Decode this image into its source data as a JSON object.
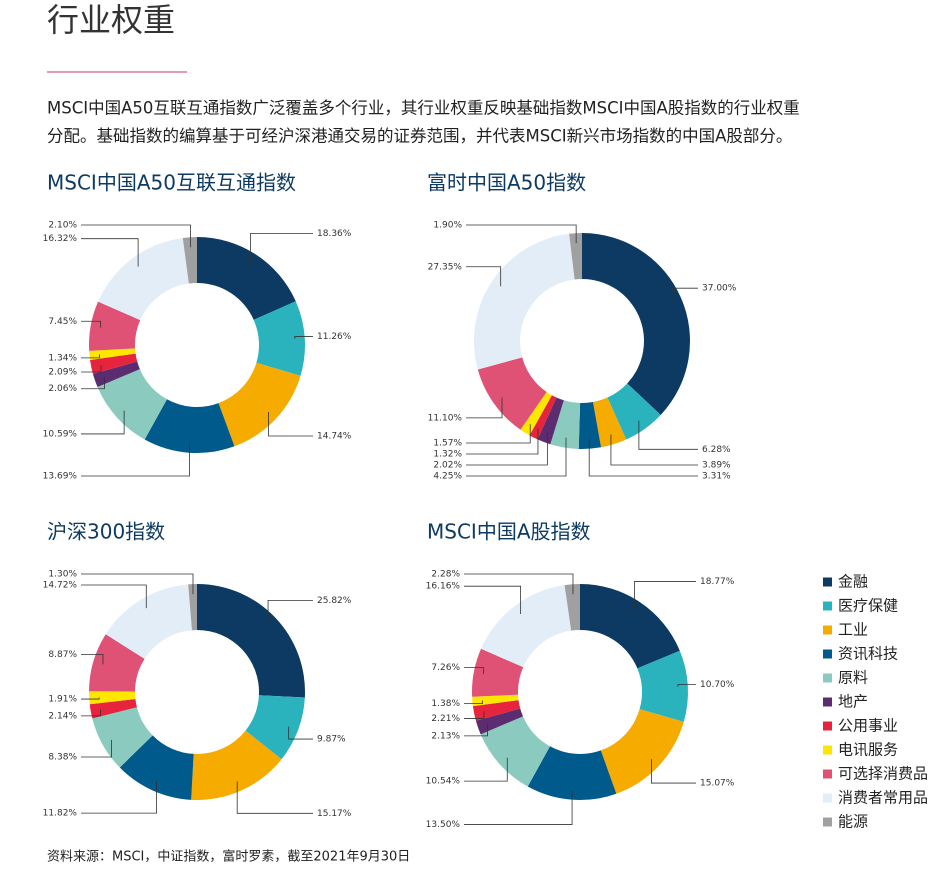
{
  "title": "行业权重",
  "intro": [
    "MSCI中国A50互联互通指数广泛覆盖多个行业，其行业权重反映基础指数MSCI中国A股指数的行业权重",
    "分配。基础指数的编算基于可经沪深港通交易的证券范围，并代表MSCI新兴市场指数的中国A股部分。"
  ],
  "source": "资料来源：MSCI，中证指数，富时罗素，截至2021年9月30日",
  "legend": {
    "labels": [
      "金融",
      "医疗保健",
      "工业",
      "资讯科技",
      "原料",
      "地产",
      "公用事业",
      "电讯服务",
      "可选择消费品",
      "消费者常用品",
      "能源"
    ],
    "colors": [
      "#0d3a63",
      "#2ab3bd",
      "#f5ab00",
      "#005b8c",
      "#8bcbbf",
      "#5b2c6f",
      "#e6243e",
      "#ffe600",
      "#e05275",
      "#e3edf7",
      "#a0a0a0"
    ]
  },
  "chart_data": [
    {
      "type": "pie",
      "title": "MSCI中国A50互联互通指数",
      "values": [
        18.36,
        11.26,
        14.74,
        13.69,
        10.59,
        2.06,
        2.09,
        1.34,
        7.45,
        16.32,
        2.1
      ],
      "value_labels": [
        "18.36%",
        "11.26%",
        "14.74%",
        "13.69%",
        "10.59%",
        "2.06%",
        "2.09%",
        "1.34%",
        "7.45%",
        "16.32%",
        "2.10%"
      ]
    },
    {
      "type": "pie",
      "title": "富时中国A50指数",
      "values": [
        37.0,
        6.28,
        3.89,
        3.31,
        4.25,
        2.02,
        1.32,
        1.57,
        11.1,
        27.35,
        1.9
      ],
      "value_labels": [
        "37.00%",
        "6.28%",
        "3.89%",
        "3.31%",
        "4.25%",
        "2.02%",
        "1.32%",
        "1.57%",
        "11.10%",
        "27.35%",
        "1.90%"
      ]
    },
    {
      "type": "pie",
      "title": "沪深300指数",
      "values": [
        25.82,
        9.87,
        15.17,
        11.82,
        8.38,
        null,
        2.14,
        1.91,
        8.87,
        14.72,
        1.3
      ],
      "value_labels": [
        "25.82%",
        "9.87%",
        "15.17%",
        "11.82%",
        "8.38%",
        null,
        "2.14%",
        "1.91%",
        "8.87%",
        "14.72%",
        "1.30%"
      ]
    },
    {
      "type": "pie",
      "title": "MSCI中国A股指数",
      "values": [
        18.77,
        10.7,
        15.07,
        13.5,
        10.54,
        2.13,
        2.21,
        1.38,
        7.26,
        16.16,
        2.28
      ],
      "value_labels": [
        "18.77%",
        "10.70%",
        "15.07%",
        "13.50%",
        "10.54%",
        "2.13%",
        "2.21%",
        "1.38%",
        "7.26%",
        "16.16%",
        "2.28%"
      ]
    }
  ]
}
